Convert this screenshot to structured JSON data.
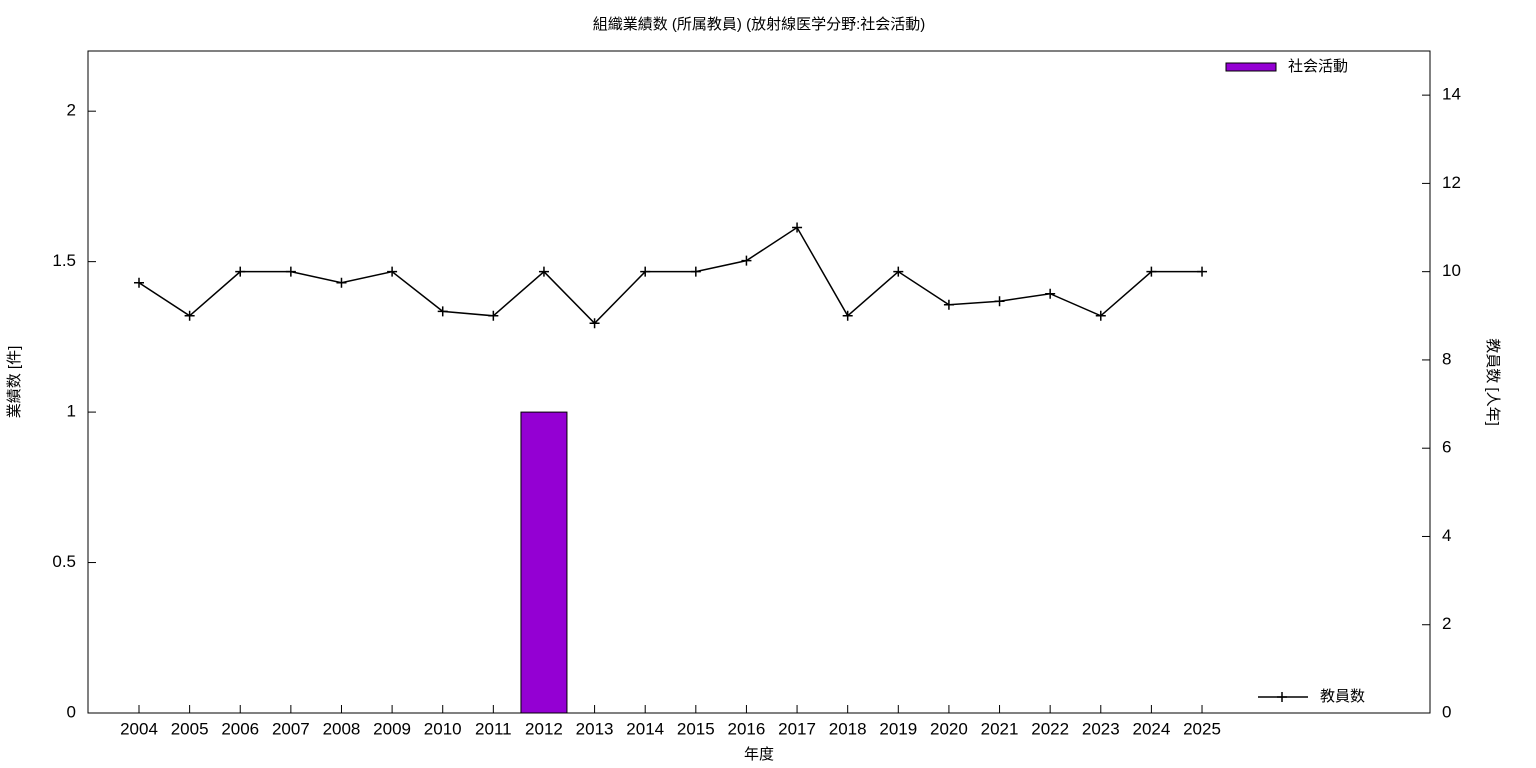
{
  "chart_data": {
    "type": "bar",
    "title": "組織業績数 (所属教員) (放射線医学分野:社会活動)",
    "x_label": "年度",
    "y_label": "業績数 [件]",
    "y2_label": "教員数 [人年]",
    "categories": [
      "2004",
      "2005",
      "2006",
      "2007",
      "2008",
      "2009",
      "2010",
      "2011",
      "2012",
      "2013",
      "2014",
      "2015",
      "2016",
      "2017",
      "2018",
      "2019",
      "2020",
      "2021",
      "2022",
      "2023",
      "2024",
      "2025"
    ],
    "series": [
      {
        "name": "社会活動",
        "type": "bar",
        "color": "#9400d3",
        "legend": "top right",
        "values": [
          0,
          0,
          0,
          0,
          0,
          0,
          0,
          0,
          1,
          0,
          0,
          0,
          0,
          0,
          0,
          0,
          0,
          0,
          0,
          0,
          0,
          0
        ]
      },
      {
        "name": "教員数",
        "type": "line",
        "color": "#000000",
        "axis": "y2",
        "legend": "bottom right",
        "values": [
          9.75,
          9,
          10,
          10,
          9.75,
          10,
          9.1,
          9,
          10,
          8.83,
          10,
          10,
          10.25,
          11,
          9,
          10,
          9.25,
          9.33,
          9.5,
          9,
          10,
          10
        ]
      }
    ],
    "ylim": [
      0,
      2.2
    ],
    "yticks": [
      0,
      0.5,
      1,
      1.5,
      2
    ],
    "y2lim": [
      0,
      15
    ],
    "y2ticks": [
      0,
      2,
      4,
      6,
      8,
      10,
      12,
      14
    ],
    "grid": false
  }
}
